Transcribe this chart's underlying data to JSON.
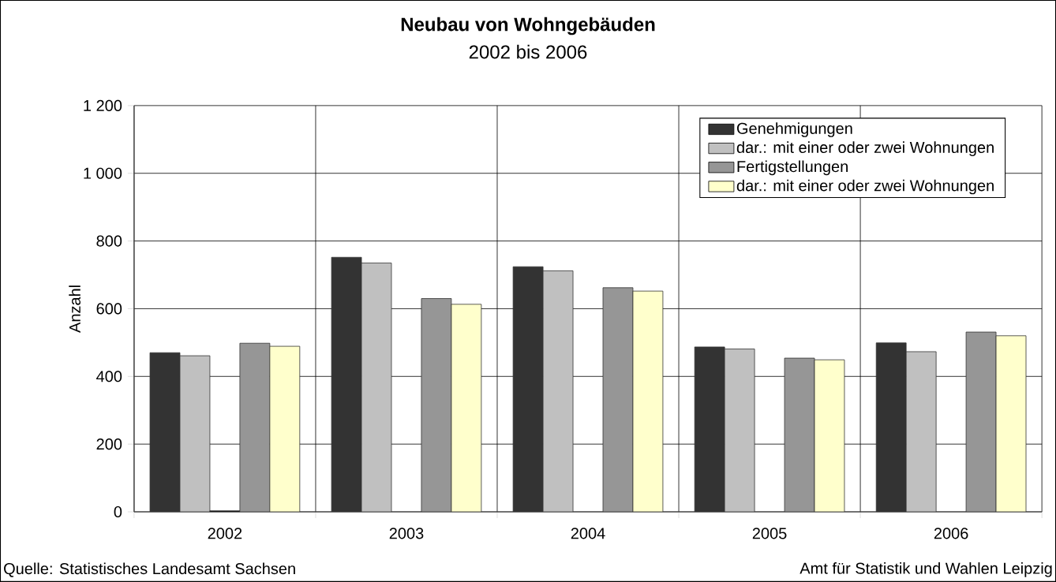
{
  "chart_data": {
    "type": "bar",
    "title": "Neubau von Wohngebäuden",
    "subtitle": "2002 bis 2006",
    "ylabel": "Anzahl",
    "categories": [
      "2002",
      "2003",
      "2004",
      "2005",
      "2006"
    ],
    "series": [
      {
        "name": "Genehmigungen",
        "color": "#333333",
        "values": [
          470,
          752,
          724,
          487,
          499
        ]
      },
      {
        "name": "dar.: mit einer oder zwei Wohnungen",
        "color": "#c0c0c0",
        "values": [
          461,
          735,
          712,
          481,
          473
        ]
      },
      {
        "color": "#000000",
        "values": [
          3,
          null,
          null,
          null,
          null
        ]
      },
      {
        "name": "Fertigstellungen",
        "color": "#969696",
        "values": [
          498,
          630,
          662,
          454,
          531
        ]
      },
      {
        "name": "dar.: mit einer oder zwei Wohnungen",
        "color": "#ffffcc",
        "values": [
          489,
          613,
          652,
          449,
          520
        ]
      }
    ],
    "ylim": [
      0,
      1200
    ],
    "yticks": [
      0,
      200,
      400,
      600,
      800,
      {
        "value": 1000,
        "label": "1 000"
      },
      {
        "value": 1200,
        "label": "1 200"
      }
    ],
    "grid": true,
    "legend": "top right",
    "annotations": [
      "Quelle: Statistisches Landesamt Sachsen",
      "Amt für Statistik und Wahlen Leipzig"
    ]
  }
}
